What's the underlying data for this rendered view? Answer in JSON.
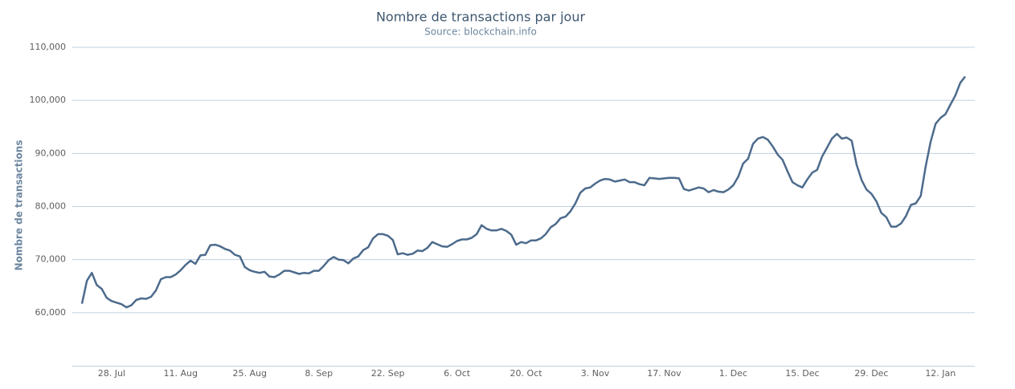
{
  "chart_data": {
    "type": "line",
    "title": "Nombre de transactions par jour",
    "subtitle": "Source: blockchain.info",
    "y_label": "Nombre de transactions",
    "categories": [
      null,
      null,
      null,
      null,
      null,
      null,
      "28. Jul",
      null,
      null,
      null,
      null,
      null,
      null,
      null,
      null,
      null,
      null,
      null,
      null,
      null,
      "11. Aug",
      null,
      null,
      null,
      null,
      null,
      null,
      null,
      null,
      null,
      null,
      null,
      null,
      null,
      "25. Aug",
      null,
      null,
      null,
      null,
      null,
      null,
      null,
      null,
      null,
      null,
      null,
      null,
      null,
      "8. Sep",
      null,
      null,
      null,
      null,
      null,
      null,
      null,
      null,
      null,
      null,
      null,
      null,
      null,
      "22. Sep",
      null,
      null,
      null,
      null,
      null,
      null,
      null,
      null,
      null,
      null,
      null,
      null,
      null,
      "6. Oct",
      null,
      null,
      null,
      null,
      null,
      null,
      null,
      null,
      null,
      null,
      null,
      null,
      null,
      "20. Oct",
      null,
      null,
      null,
      null,
      null,
      null,
      null,
      null,
      null,
      null,
      null,
      null,
      null,
      "3. Nov",
      null,
      null,
      null,
      null,
      null,
      null,
      null,
      null,
      null,
      null,
      null,
      null,
      null,
      "17. Nov",
      null,
      null,
      null,
      null,
      null,
      null,
      null,
      null,
      null,
      null,
      null,
      null,
      null,
      "1. Dec",
      null,
      null,
      null,
      null,
      null,
      null,
      null,
      null,
      null,
      null,
      null,
      null,
      null,
      "15. Dec",
      null,
      null,
      null,
      null,
      null,
      null,
      null,
      null,
      null,
      null,
      null,
      null,
      null,
      "29. Dec",
      null,
      null,
      null,
      null,
      null,
      null,
      null,
      null,
      null,
      null,
      null,
      null,
      null,
      "12. Jan",
      null,
      null,
      null,
      null,
      null
    ],
    "series": [
      {
        "color": "#4d6b8c",
        "values": [
          61700,
          66000,
          67500,
          65200,
          64500,
          62800,
          62200,
          61900,
          61600,
          61000,
          61400,
          62400,
          62700,
          62600,
          63000,
          64200,
          66300,
          66700,
          66700,
          67200,
          68000,
          69000,
          69800,
          69200,
          70800,
          70900,
          72700,
          72800,
          72500,
          72000,
          71700,
          70900,
          70600,
          68600,
          68000,
          67700,
          67500,
          67700,
          66800,
          66700,
          67200,
          67900,
          67900,
          67600,
          67300,
          67500,
          67400,
          67900,
          67900,
          68800,
          69900,
          70500,
          70000,
          69900,
          69300,
          70200,
          70600,
          71800,
          72300,
          74000,
          74800,
          74800,
          74500,
          73700,
          71000,
          71200,
          70900,
          71100,
          71700,
          71600,
          72200,
          73300,
          72900,
          72500,
          72400,
          72900,
          73500,
          73800,
          73800,
          74100,
          74800,
          76500,
          75800,
          75500,
          75500,
          75800,
          75400,
          74700,
          72800,
          73300,
          73100,
          73600,
          73600,
          74000,
          74800,
          76100,
          76700,
          77800,
          78100,
          79100,
          80600,
          82600,
          83400,
          83600,
          84300,
          84900,
          85200,
          85100,
          84700,
          84900,
          85100,
          84600,
          84600,
          84200,
          84000,
          85400,
          85300,
          85200,
          85300,
          85400,
          85400,
          85300,
          83300,
          83000,
          83300,
          83600,
          83400,
          82700,
          83100,
          82800,
          82700,
          83200,
          84000,
          85600,
          88100,
          89000,
          91800,
          92800,
          93100,
          92600,
          91300,
          89800,
          88800,
          86600,
          84600,
          84000,
          83600,
          85100,
          86400,
          86900,
          89400,
          91100,
          92800,
          93700,
          92800,
          93000,
          92400,
          87900,
          85000,
          83200,
          82400,
          81000,
          78800,
          78000,
          76200,
          76200,
          76800,
          78200,
          80300,
          80600,
          82000,
          87600,
          92200,
          95600,
          96700,
          97400,
          99200,
          100900,
          103300,
          104500
        ]
      }
    ],
    "ylim": [
      50000,
      110000
    ],
    "yticks": [
      {
        "value": 60000,
        "label": "60,000"
      },
      {
        "value": 70000,
        "label": "70,000"
      },
      {
        "value": 80000,
        "label": "80,000"
      },
      {
        "value": 90000,
        "label": "90,000"
      },
      {
        "value": 100000,
        "label": "100,000"
      },
      {
        "value": 110000,
        "label": "110,000"
      }
    ],
    "grid": true
  }
}
